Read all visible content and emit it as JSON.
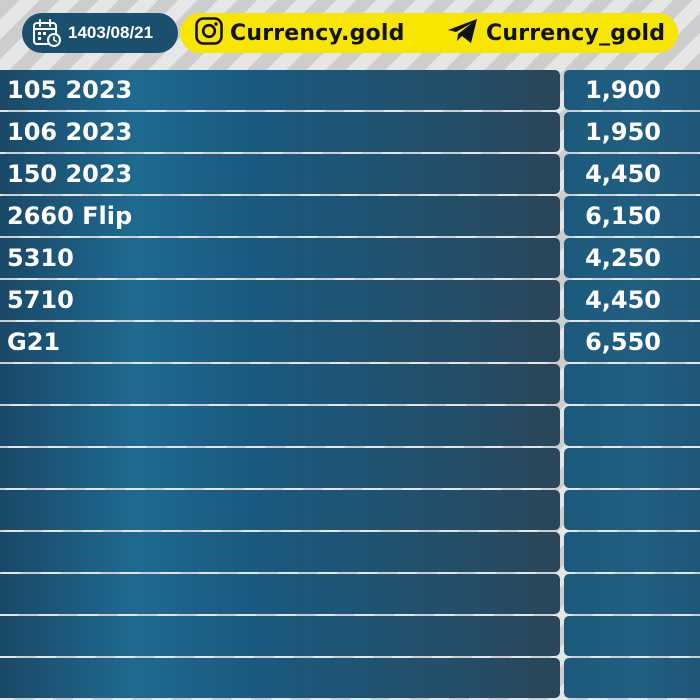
{
  "header": {
    "date": "1403/08/21",
    "instagram_handle": "Currency.gold",
    "telegram_handle": "Currency_gold"
  },
  "rows": [
    {
      "name": "105 2023",
      "price": "1,900"
    },
    {
      "name": "106 2023",
      "price": "1,950"
    },
    {
      "name": "150 2023",
      "price": "4,450"
    },
    {
      "name": "2660 Flip",
      "price": "6,150"
    },
    {
      "name": "5310",
      "price": "4,250"
    },
    {
      "name": "5710",
      "price": "4,450"
    },
    {
      "name": "G21",
      "price": "6,550"
    },
    {
      "name": "",
      "price": ""
    },
    {
      "name": "",
      "price": ""
    },
    {
      "name": "",
      "price": ""
    },
    {
      "name": "",
      "price": ""
    },
    {
      "name": "",
      "price": ""
    },
    {
      "name": "",
      "price": ""
    },
    {
      "name": "",
      "price": ""
    },
    {
      "name": "",
      "price": ""
    }
  ],
  "colors": {
    "accent_yellow": "#f7e600",
    "date_pill": "#1b4f6e",
    "row_blue": "#1e6a90"
  },
  "icons": [
    "calendar-icon",
    "instagram-icon",
    "telegram-icon"
  ]
}
